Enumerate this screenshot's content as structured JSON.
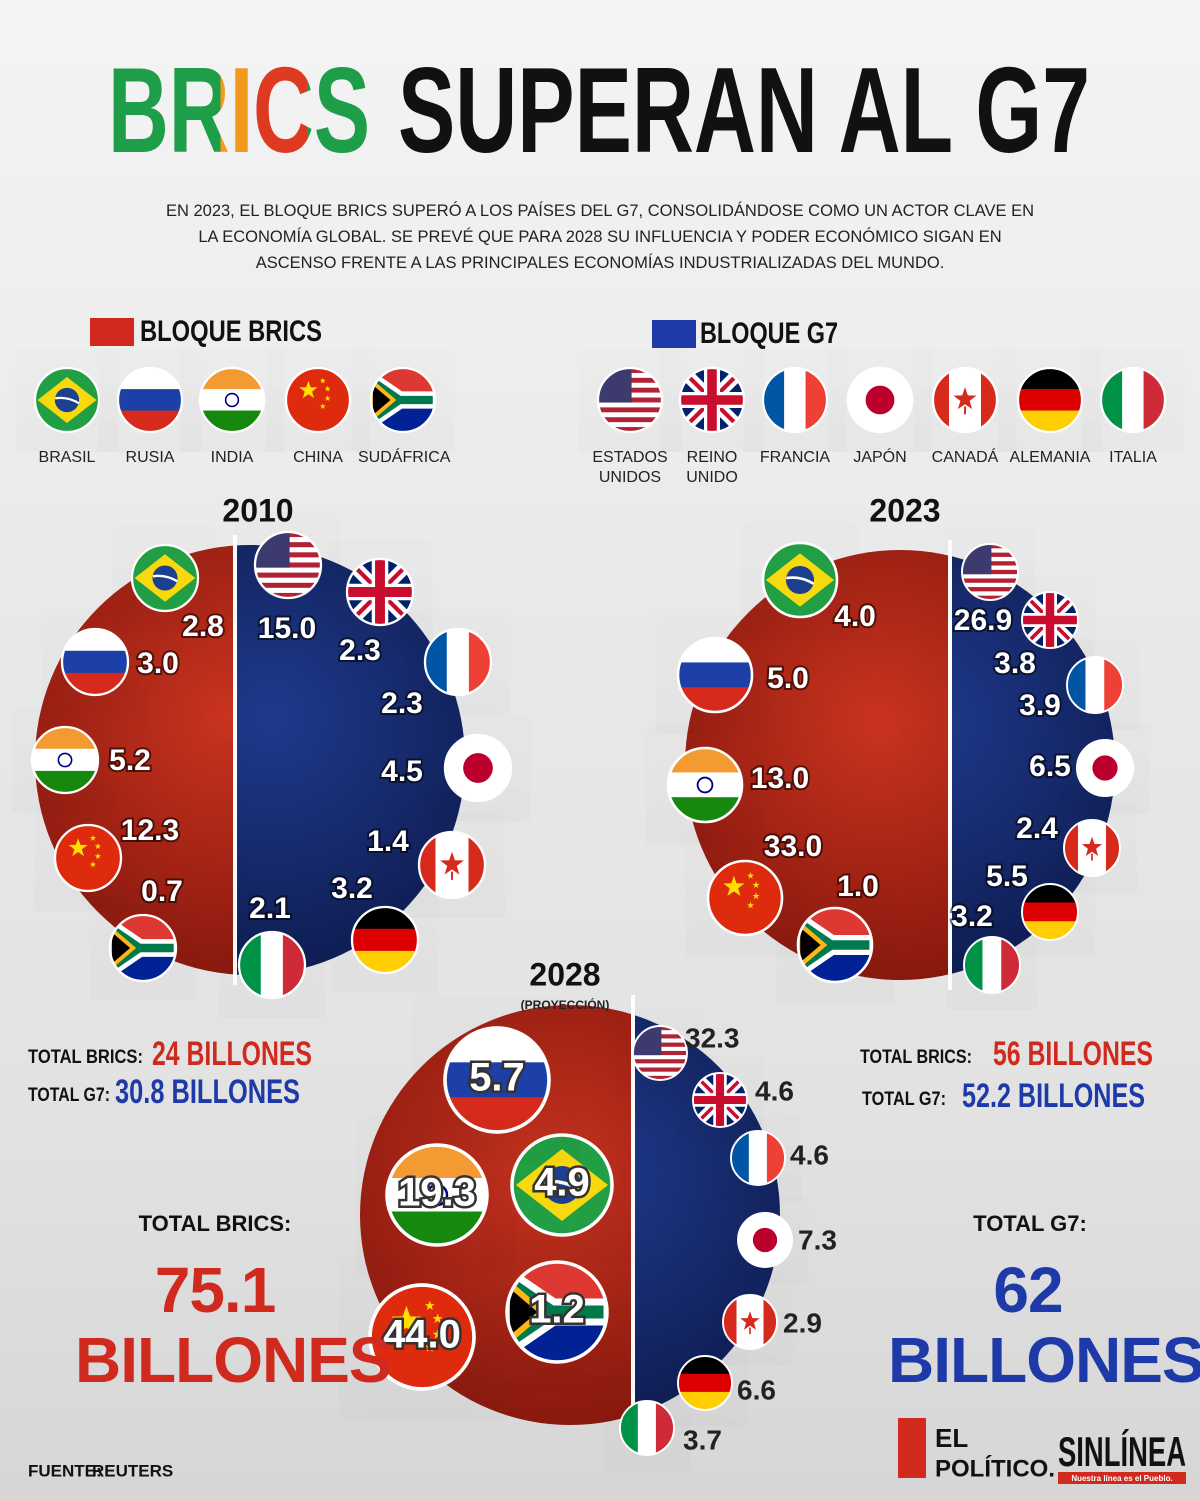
{
  "title": {
    "brics": "BRICS",
    "rest": "SUPERAN AL G7"
  },
  "subtitle": "EN 2023, EL BLOQUE BRICS SUPERÓ A LOS PAÍSES DEL G7, CONSOLIDÁNDOSE COMO UN ACTOR CLAVE EN LA ECONOMÍA GLOBAL. SE PREVÉ QUE PARA 2028 SU INFLUENCIA Y PODER ECONÓMICO SIGAN EN ASCENSO FRENTE A LAS PRINCIPALES ECONOMÍAS INDUSTRIALIZADAS DEL MUNDO.",
  "legend": {
    "brics": "BLOQUE BRICS",
    "g7": "BLOQUE G7",
    "brics_countries": [
      "BRASIL",
      "RUSIA",
      "INDIA",
      "CHINA",
      "SUDÁFRICA"
    ],
    "g7_countries": [
      "ESTADOS UNIDOS",
      "REINO UNIDO",
      "FRANCIA",
      "JAPÓN",
      "CANADÁ",
      "ALEMANIA",
      "ITALIA"
    ]
  },
  "panels": [
    {
      "year": "2010",
      "brics": [
        "2.8",
        "3.0",
        "5.2",
        "12.3",
        "0.7"
      ],
      "g7": [
        "15.0",
        "2.3",
        "2.3",
        "4.5",
        "1.4",
        "3.2",
        "2.1"
      ]
    },
    {
      "year": "2023",
      "brics": [
        "4.0",
        "5.0",
        "13.0",
        "33.0",
        "1.0"
      ],
      "g7": [
        "26.9",
        "3.8",
        "3.9",
        "6.5",
        "2.4",
        "5.5",
        "3.2"
      ]
    },
    {
      "year": "2028",
      "note": "(PROYECCIÓN)",
      "brics": [
        "4.9",
        "5.7",
        "19.3",
        "44.0",
        "1.2"
      ],
      "g7": [
        "32.3",
        "4.6",
        "4.6",
        "7.3",
        "2.9",
        "6.6",
        "3.7"
      ]
    }
  ],
  "totals": [
    {
      "brics_label": "TOTAL BRICS:",
      "brics": "24 BILLONES",
      "g7_label": "TOTAL G7:",
      "g7": "30.8 BILLONES"
    },
    {
      "brics_label": "TOTAL BRICS:",
      "brics": "56 BILLONES",
      "g7_label": "TOTAL G7:",
      "g7": "52.2 BILLONES"
    },
    {
      "brics_label": "TOTAL BRICS:",
      "brics": "75.1 BILLONES",
      "g7_label": "TOTAL G7:",
      "g7": "62 BILLONES"
    }
  ],
  "source": {
    "label": "FUENTE:",
    "value": "REUTERS"
  },
  "logos": {
    "el": "EL",
    "politico": "POLÍTICO.",
    "sinlinea": "SINLÍNEA",
    "tagline": "Nuestra línea es el Pueblo."
  }
}
